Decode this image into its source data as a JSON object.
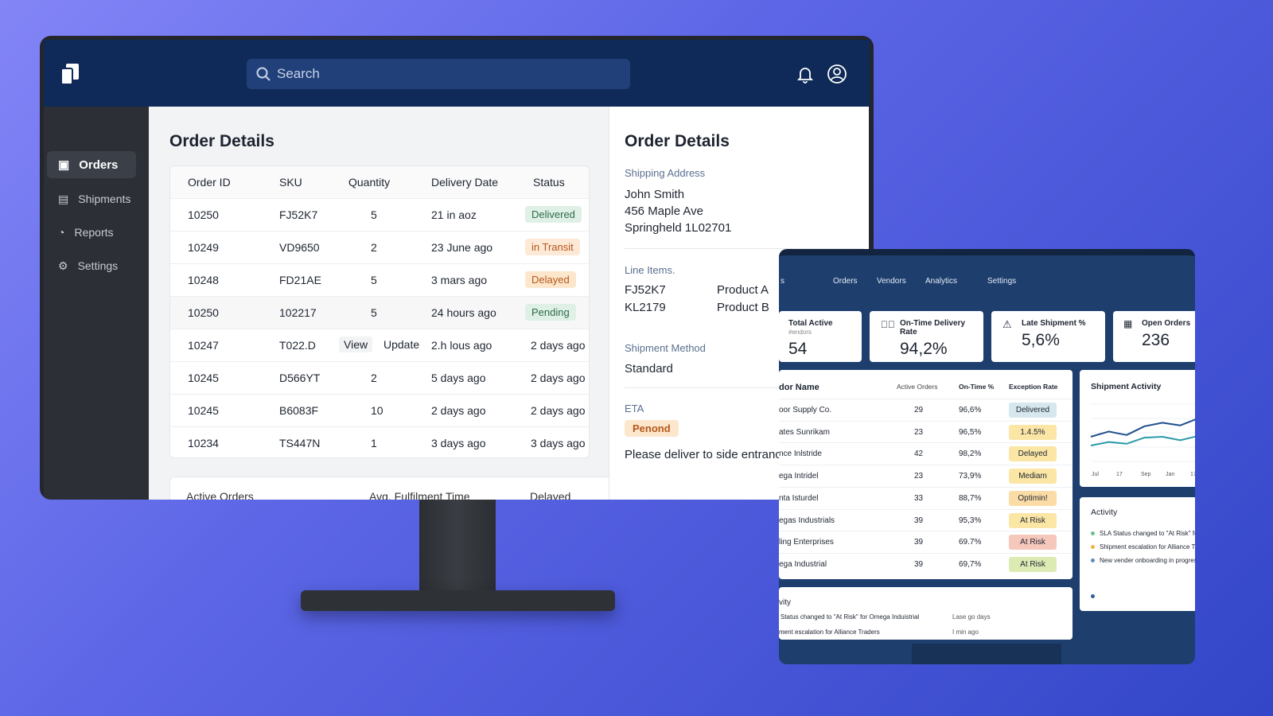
{
  "monitor": {
    "search_placeholder": "Search",
    "sidebar": [
      {
        "label": "Orders",
        "icon": "inbox-icon",
        "active": true
      },
      {
        "label": "Shipments",
        "icon": "document-icon"
      },
      {
        "label": "Reports",
        "icon": "pie-chart-icon"
      },
      {
        "label": "Settings",
        "icon": "gear-icon"
      }
    ],
    "main_title": "Order Details",
    "columns": [
      "Order ID",
      "SKU",
      "Quantity",
      "Delivery Date",
      "Status"
    ],
    "rows": [
      {
        "id": "10250",
        "sku": "FJ52K7",
        "qty": "5",
        "date": "21 in aoz",
        "status": "Delivered",
        "status_color": "#dff0e6",
        "status_text": "#2f6b48"
      },
      {
        "id": "10249",
        "sku": "VD9650",
        "qty": "2",
        "date": "23 June ago",
        "status": "in Transit",
        "status_color": "#fde9d6",
        "status_text": "#b4571b"
      },
      {
        "id": "10248",
        "sku": "FD21AE",
        "qty": "5",
        "date": "3 mars ago",
        "status": "Delayed",
        "status_color": "#fde7cc",
        "status_text": "#b4571b"
      },
      {
        "id": "10250",
        "sku": "102217",
        "qty": "5",
        "date": "24 hours ago",
        "status": "Pending",
        "status_color": "#dff0e6",
        "status_text": "#2f6b48"
      },
      {
        "id": "10247",
        "sku": "T022.D",
        "qty": "View",
        "qty2": "Update",
        "date": "2.h lous ago",
        "status": "2 days ago"
      },
      {
        "id": "10245",
        "sku": "D566YT",
        "qty": "2",
        "date": "5 days ago",
        "status": "2 days ago"
      },
      {
        "id": "10245",
        "sku": "B6083F",
        "qty": "10",
        "date": "2 days ago",
        "status": "2 days ago"
      },
      {
        "id": "10234",
        "sku": "TS447N",
        "qty": "1",
        "date": "3 days ago",
        "status": "3 days ago"
      }
    ],
    "footer_stats": [
      "Active Orders",
      "Avg. Fulfilment Time",
      "Delayed Shipments"
    ],
    "detail": {
      "title": "Order Details",
      "shipping_label": "Shipping Address",
      "address": [
        "John Smith",
        "456 Maple Ave",
        "Springheld 1L02701"
      ],
      "line_items_label": "Line Items.",
      "line_items": [
        {
          "sku": "FJ52K7",
          "name": "Product A"
        },
        {
          "sku": "KL2179",
          "name": "Product B"
        }
      ],
      "method_label": "Shipment Method",
      "method": "Standard",
      "eta_label": "ETA",
      "eta_badge": "Penond",
      "note": "Please deliver to side entrance"
    }
  },
  "tablet": {
    "nav": [
      "Orders",
      "Vendors",
      "Analytics",
      "Settings"
    ],
    "nav_partial": "s",
    "kpis": [
      {
        "title": "Total Active",
        "sub": "#endors",
        "value": "54"
      },
      {
        "title": "On-Time Delivery Rate",
        "value": "94,2%",
        "icon": "check-circle-icon"
      },
      {
        "title": "Late Shipment %",
        "value": "5,6%",
        "icon": "warning-icon"
      },
      {
        "title": "Open Orders",
        "value": "236",
        "icon": "clipboard-icon"
      }
    ],
    "columns": [
      "dor Name",
      "Active Orders",
      "On-Time %",
      "Exception Rate"
    ],
    "vendors": [
      {
        "name": "oor Supply Co.",
        "orders": "29",
        "ontime": "96,6%",
        "exc": "Delivered",
        "color": "#d6e8ee"
      },
      {
        "name": "ates Sunrikam",
        "orders": "23",
        "ontime": "96,5%",
        "exc": "1.4.5%",
        "color": "#fbe6a6"
      },
      {
        "name": "nce Inlstride",
        "orders": "42",
        "ontime": "98,2%",
        "exc": "Delayed",
        "color": "#fbe6a6"
      },
      {
        "name": "ega Intridel",
        "orders": "23",
        "ontime": "73,9%",
        "exc": "Mediam",
        "color": "#fbe6a6"
      },
      {
        "name": "nta Isturdel",
        "orders": "33",
        "ontime": "88,7%",
        "exc": "Optimin!",
        "color": "#fbdca6"
      },
      {
        "name": "egas Industrials",
        "orders": "39",
        "ontime": "95,3%",
        "exc": "At Risk",
        "color": "#fbe6a6"
      },
      {
        "name": "ling Enterprises",
        "orders": "39",
        "ontime": "69.7%",
        "exc": "At Risk",
        "color": "#f6c8bc"
      },
      {
        "name": "ega Industrial",
        "orders": "39",
        "ontime": "69,7%",
        "exc": "At Risk",
        "color": "#dcebb4"
      }
    ],
    "chart": {
      "title": "Shipment Activity",
      "xticks": [
        "Jul",
        "17",
        "Sep",
        "Jan",
        "17"
      ],
      "series": [
        {
          "color": "#1f4e8c",
          "values": [
            3,
            3.6,
            3.2,
            4.2,
            4.6,
            4.3,
            5.1,
            5.4
          ]
        },
        {
          "color": "#2b9aa8",
          "values": [
            2,
            2.4,
            2.2,
            2.9,
            3.0,
            2.6,
            3.1,
            3.3
          ]
        }
      ]
    },
    "activity": {
      "title": "Activity",
      "items": [
        {
          "text": "SLA Status changed to \"At Risk\" for Omega Industrial",
          "color": "#6cc08a"
        },
        {
          "text": "Shipment escalation for Alliance Traders",
          "color": "#f0b43c"
        },
        {
          "text": "New vender onboarding in progress",
          "color": "#5b8cc0"
        }
      ]
    },
    "bottom_activity": {
      "title": "vity",
      "items": [
        {
          "text": "Status changed to \"At Risk\" for Omega Induistrial",
          "time": "Lase go days"
        },
        {
          "text": "ment escalation for Alliance Traders",
          "time": "I min ago"
        }
      ]
    }
  }
}
